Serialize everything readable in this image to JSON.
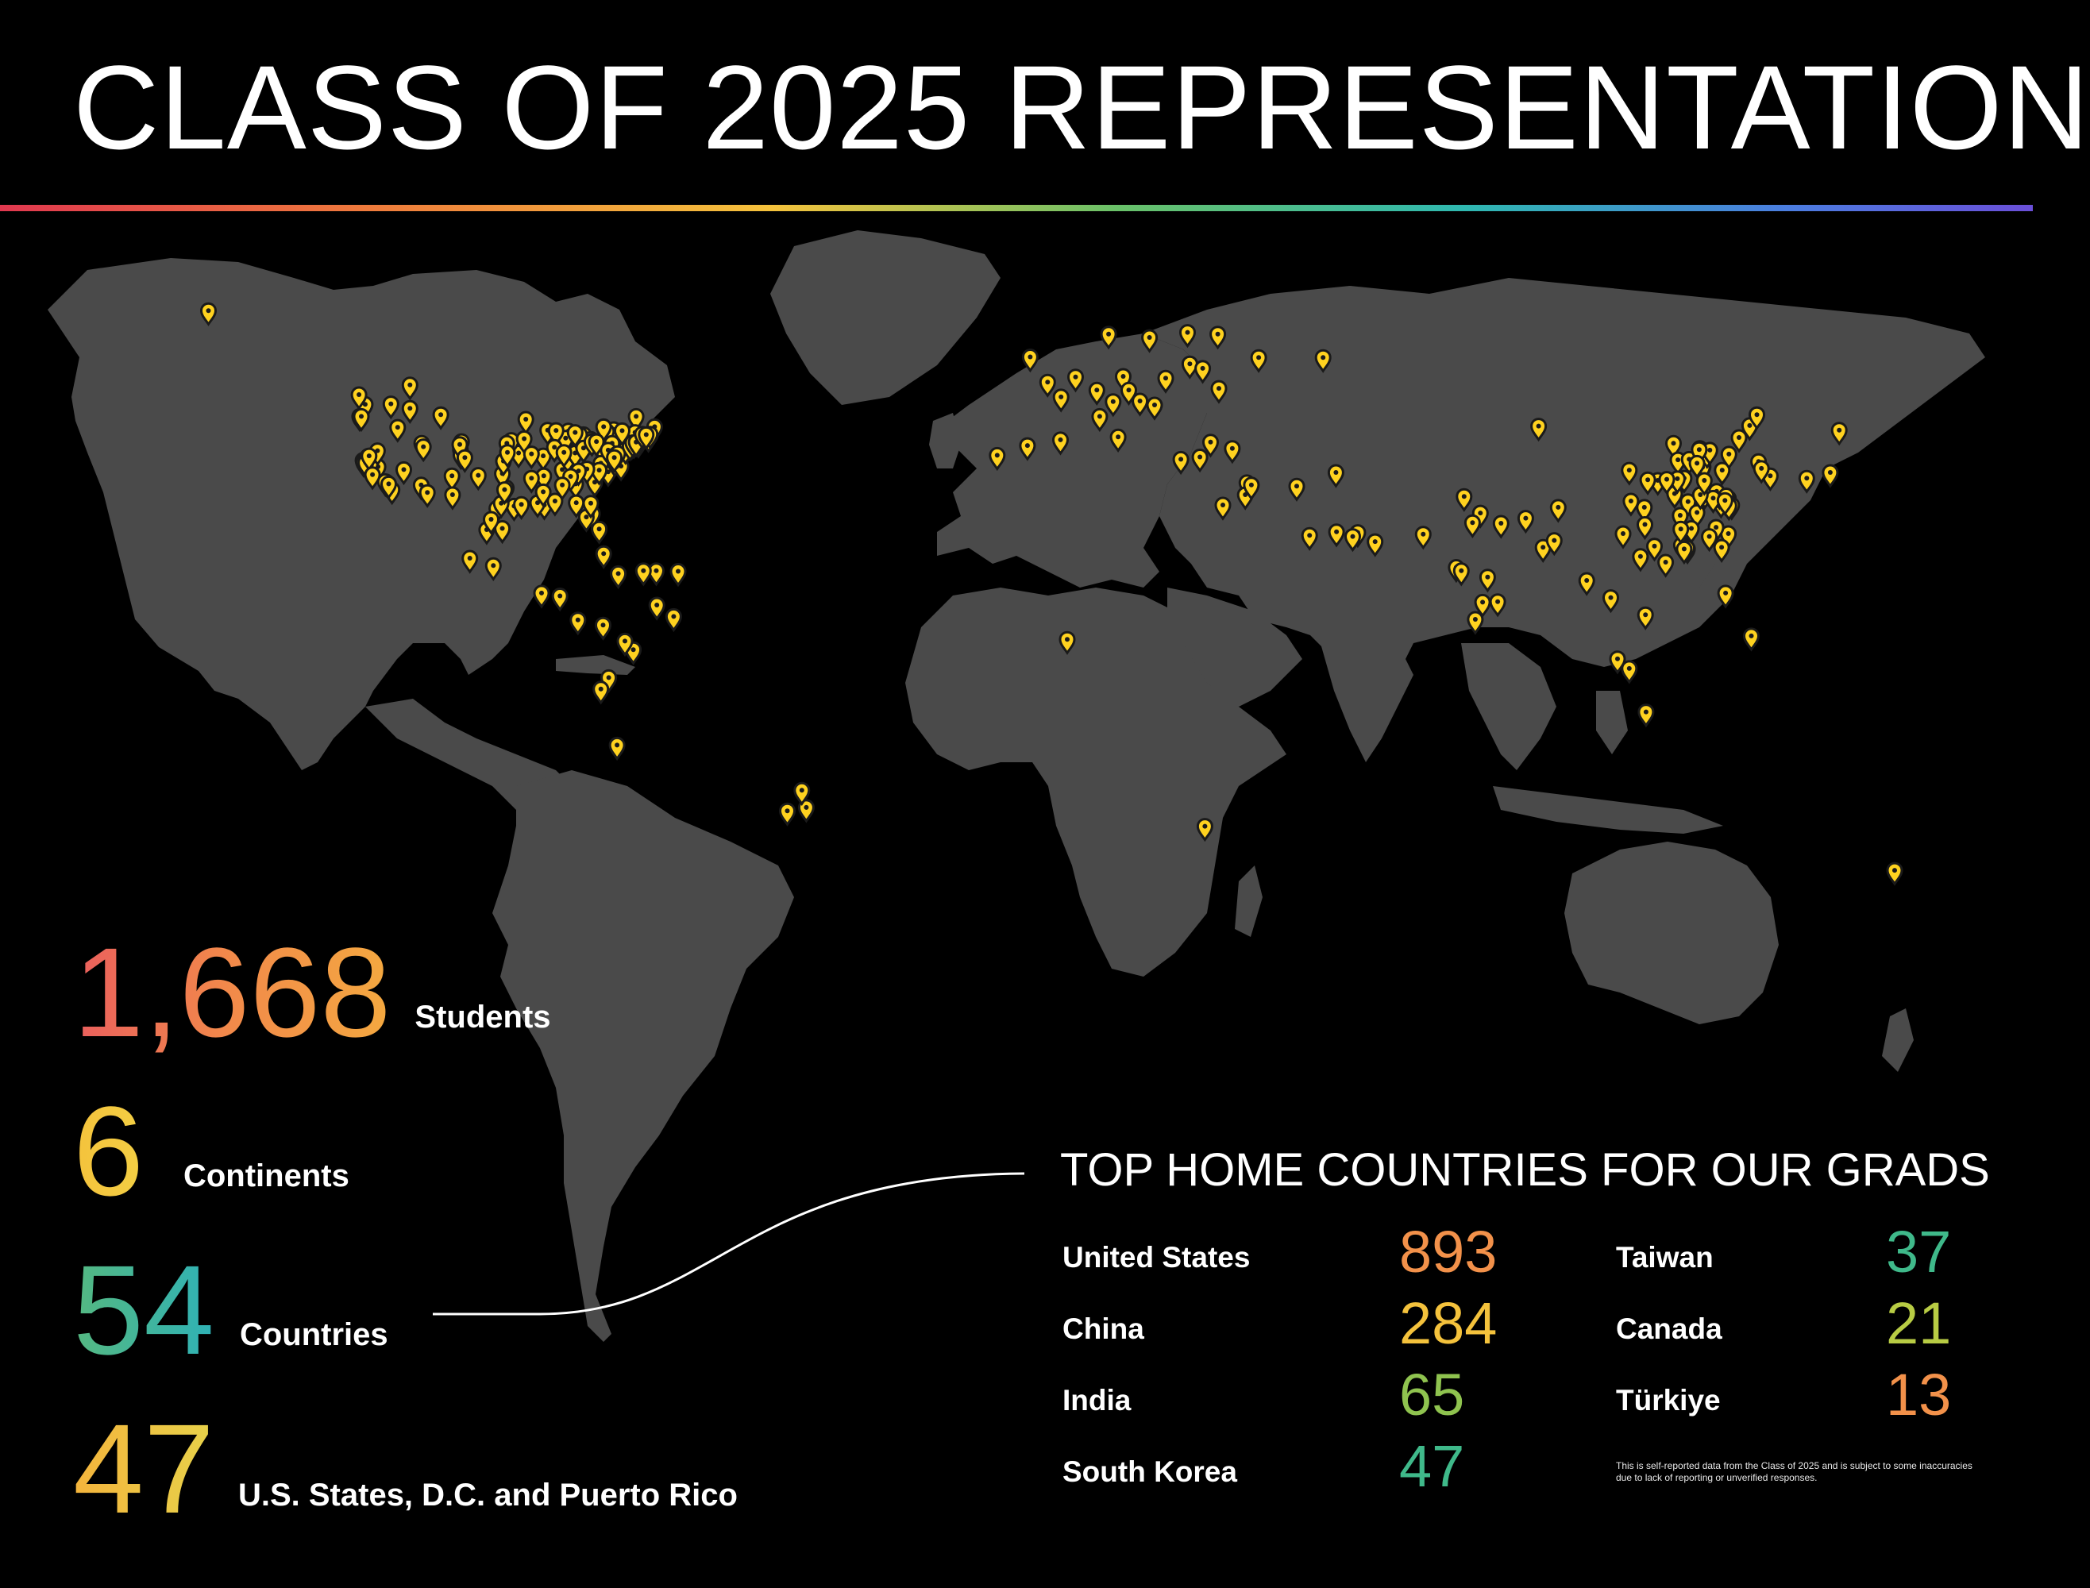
{
  "title": "CLASS OF 2025 REPRESENTATION",
  "colors": {
    "background": "#000000",
    "land": "#4a4a4a",
    "pin_fill": "#ffd21f",
    "pin_outline": "#1a1a1a",
    "accent_red": "#ea5f5d",
    "accent_orange": "#f2914a",
    "accent_yellow": "#f4c23c",
    "accent_green": "#6cc46a",
    "accent_teal": "#2fb8b0",
    "accent_blue": "#4b7de0"
  },
  "stats": [
    {
      "number": "1,668",
      "label": "Students"
    },
    {
      "number": "6",
      "label": "Continents"
    },
    {
      "number": "54",
      "label": "Countries"
    },
    {
      "number": "47",
      "label": "U.S. States, D.C. and Puerto Rico"
    }
  ],
  "top_countries": {
    "heading": "TOP HOME COUNTRIES FOR OUR GRADS",
    "items": [
      {
        "name": "United States",
        "count": "893",
        "color": "#f2914a"
      },
      {
        "name": "China",
        "count": "284",
        "color": "#f4c23c"
      },
      {
        "name": "India",
        "count": "65",
        "color": "#8fc34f"
      },
      {
        "name": "South Korea",
        "count": "47",
        "color": "#3fb98a"
      },
      {
        "name": "Taiwan",
        "count": "37",
        "color": "#3fb98a"
      },
      {
        "name": "Canada",
        "count": "21",
        "color": "#b8cc44"
      },
      {
        "name": "Türkiye",
        "count": "13",
        "color": "#f2914a"
      }
    ]
  },
  "disclaimer": "This is self-reported data from the Class of 2025 and is subject to some inaccuracies due to lack of reporting or unverified responses.",
  "map": {
    "pin_icon": "map-pin-icon",
    "pins": [
      [
        -150,
        64
      ],
      [
        -122,
        47.6
      ],
      [
        -123,
        45.5
      ],
      [
        -122.4,
        37.8
      ],
      [
        -122,
        37.3
      ],
      [
        -121.5,
        38.5
      ],
      [
        -118.2,
        34
      ],
      [
        -117.2,
        32.7
      ],
      [
        -119.7,
        36.7
      ],
      [
        -111.9,
        40.8
      ],
      [
        -112,
        33.5
      ],
      [
        -106.5,
        35.1
      ],
      [
        -105,
        39.7
      ],
      [
        -104.8,
        41.1
      ],
      [
        -97,
        32.8
      ],
      [
        -95.4,
        29.8
      ],
      [
        -98.5,
        29.4
      ],
      [
        -97.7,
        30.3
      ],
      [
        -96.8,
        33
      ],
      [
        -90,
        30
      ],
      [
        -94.6,
        39.1
      ],
      [
        -93.3,
        45
      ],
      [
        -90.2,
        38.6
      ],
      [
        -87.6,
        41.9
      ],
      [
        -88,
        43
      ],
      [
        -86.2,
        39.8
      ],
      [
        -84.4,
        33.7
      ],
      [
        -83,
        42.3
      ],
      [
        -81.7,
        41.5
      ],
      [
        -80,
        40.4
      ],
      [
        -77,
        38.9
      ],
      [
        -76.6,
        39.3
      ],
      [
        -75.2,
        40
      ],
      [
        -74,
        40.7
      ],
      [
        -73.9,
        41.3
      ],
      [
        -71,
        42.4
      ],
      [
        -72.7,
        41.8
      ],
      [
        -77.6,
        43.2
      ],
      [
        -78.9,
        42.9
      ],
      [
        -80.8,
        35.2
      ],
      [
        -78.6,
        35.8
      ],
      [
        -81,
        34
      ],
      [
        -81.4,
        28.5
      ],
      [
        -80.2,
        25.8
      ],
      [
        -82.5,
        27.9
      ],
      [
        -86.8,
        36.2
      ],
      [
        -85.8,
        38.2
      ],
      [
        -84.5,
        39.1
      ],
      [
        -90.1,
        35.1
      ],
      [
        -92.3,
        34.7
      ],
      [
        -97.5,
        35.5
      ],
      [
        -95.9,
        41.3
      ],
      [
        -108.5,
        45.8
      ],
      [
        -116.2,
        43.6
      ],
      [
        -114,
        46.9
      ],
      [
        -79.4,
        43.7
      ],
      [
        -73.6,
        45.5
      ],
      [
        -114,
        51
      ],
      [
        -123.1,
        49.3
      ],
      [
        -99.1,
        19.4
      ],
      [
        -103.3,
        20.7
      ],
      [
        -100.3,
        25.7
      ],
      [
        -90.5,
        14.6
      ],
      [
        -87.2,
        14.1
      ],
      [
        -84,
        9.9
      ],
      [
        -79.5,
        9
      ],
      [
        -66.1,
        18.4
      ],
      [
        -70,
        18.5
      ],
      [
        -76.8,
        18
      ],
      [
        -69.9,
        12.5
      ],
      [
        -74.1,
        4.7
      ],
      [
        -75.6,
        6.2
      ],
      [
        -78.5,
        -0.2
      ],
      [
        -79.9,
        -2.2
      ],
      [
        -77,
        -12
      ],
      [
        -66.9,
        10.5
      ],
      [
        -46.6,
        -23.5
      ],
      [
        -43.2,
        -22.9
      ],
      [
        -44,
        -19.9
      ],
      [
        -0.1,
        51.5
      ],
      [
        -3.2,
        55.9
      ],
      [
        2.3,
        48.9
      ],
      [
        4.9,
        52.4
      ],
      [
        8.7,
        50.1
      ],
      [
        13.4,
        52.5
      ],
      [
        11.6,
        48.1
      ],
      [
        16.4,
        48.2
      ],
      [
        14.4,
        50.1
      ],
      [
        21,
        52.2
      ],
      [
        19,
        47.5
      ],
      [
        12.5,
        41.9
      ],
      [
        9.2,
        45.5
      ],
      [
        -3.7,
        40.4
      ],
      [
        2.2,
        41.4
      ],
      [
        -9.1,
        38.7
      ],
      [
        18.1,
        59.3
      ],
      [
        24.9,
        60.2
      ],
      [
        10.8,
        59.9
      ],
      [
        25.3,
        54.7
      ],
      [
        37.6,
        55.8
      ],
      [
        30.3,
        59.9
      ],
      [
        23.7,
        38
      ],
      [
        29,
        41
      ],
      [
        32.9,
        39.9
      ],
      [
        27.1,
        38.4
      ],
      [
        35.5,
        33.9
      ],
      [
        31.2,
        30
      ],
      [
        35.2,
        31.8
      ],
      [
        36.3,
        33.5
      ],
      [
        44.4,
        33.3
      ],
      [
        46.7,
        24.7
      ],
      [
        51.5,
        25.3
      ],
      [
        55.3,
        25.2
      ],
      [
        54.4,
        24.5
      ],
      [
        51.4,
        35.7
      ],
      [
        58.4,
        23.6
      ],
      [
        67,
        24.9
      ],
      [
        74.3,
        31.5
      ],
      [
        77.2,
        28.6
      ],
      [
        75.8,
        26.9
      ],
      [
        80.9,
        26.8
      ],
      [
        72.9,
        19.1
      ],
      [
        73.8,
        18.5
      ],
      [
        78.5,
        17.4
      ],
      [
        80.3,
        13.1
      ],
      [
        77.6,
        13
      ],
      [
        76.3,
        10
      ],
      [
        88.4,
        22.6
      ],
      [
        90.4,
        23.8
      ],
      [
        85.3,
        27.7
      ],
      [
        100.5,
        13.8
      ],
      [
        96.2,
        16.8
      ],
      [
        106.7,
        10.8
      ],
      [
        105.8,
        21
      ],
      [
        103.8,
        1.4
      ],
      [
        101.7,
        3.1
      ],
      [
        106.8,
        -6.2
      ],
      [
        121,
        14.6
      ],
      [
        125.6,
        7.1
      ],
      [
        121.5,
        25
      ],
      [
        120.3,
        22.6
      ],
      [
        114.2,
        22.3
      ],
      [
        113.3,
        23.1
      ],
      [
        116.4,
        39.9
      ],
      [
        117.2,
        39.1
      ],
      [
        121.5,
        31.2
      ],
      [
        120.2,
        30.3
      ],
      [
        118.8,
        32
      ],
      [
        114.3,
        30.6
      ],
      [
        104.1,
        30.7
      ],
      [
        106.5,
        29.6
      ],
      [
        108.9,
        34.3
      ],
      [
        113.6,
        34.7
      ],
      [
        117,
        36.7
      ],
      [
        120.4,
        36.1
      ],
      [
        123.4,
        41.8
      ],
      [
        125.3,
        43.9
      ],
      [
        126.6,
        45.8
      ],
      [
        112.9,
        28.2
      ],
      [
        115.9,
        28.7
      ],
      [
        119.3,
        26.1
      ],
      [
        110.3,
        20
      ],
      [
        102.7,
        25
      ],
      [
        91.1,
        29.6
      ],
      [
        87.6,
        43.8
      ],
      [
        103.8,
        36.1
      ],
      [
        111.7,
        40.8
      ],
      [
        126.9,
        37.6
      ],
      [
        129,
        35.1
      ],
      [
        127.4,
        36.4
      ],
      [
        139.7,
        35.7
      ],
      [
        135.5,
        34.7
      ],
      [
        141.3,
        43.1
      ],
      [
        151.2,
        -33.9
      ],
      [
        28,
        -26.2
      ],
      [
        3.4,
        6.5
      ],
      [
        30.5,
        50.4
      ],
      [
        27.6,
        53.9
      ],
      [
        49.1,
        55.8
      ],
      [
        -122.3,
        37.5
      ],
      [
        -121.9,
        37.4
      ],
      [
        -118.4,
        34.1
      ],
      [
        -117.8,
        33.7
      ],
      [
        -104.9,
        38.8
      ],
      [
        -96.7,
        40.8
      ],
      [
        -93.6,
        41.6
      ],
      [
        -89.4,
        43.1
      ],
      [
        -85.7,
        42.96
      ],
      [
        -83.7,
        42.3
      ],
      [
        -82.99,
        39.96
      ],
      [
        -86.2,
        41.7
      ],
      [
        -84.3,
        30.4
      ],
      [
        -81.7,
        30.3
      ],
      [
        -77.4,
        37.5
      ],
      [
        -76.3,
        36.8
      ],
      [
        -75.5,
        39.7
      ],
      [
        -74.4,
        40.5
      ],
      [
        -73.2,
        40.8
      ],
      [
        -72.9,
        41.3
      ],
      [
        -71.4,
        41.8
      ],
      [
        -70.3,
        43.7
      ],
      [
        -73.8,
        42.7
      ],
      [
        -76.1,
        43
      ],
      [
        -77.9,
        40.8
      ],
      [
        -79.9,
        37.3
      ],
      [
        -80.2,
        36.1
      ],
      [
        -82.4,
        36.3
      ],
      [
        -83.9,
        35.96
      ],
      [
        -85.3,
        35
      ],
      [
        -86.8,
        33.5
      ],
      [
        -88.1,
        30.7
      ],
      [
        -91.2,
        30.4
      ],
      [
        -90.2,
        32.3
      ],
      [
        -94.1,
        30.1
      ],
      [
        -97.1,
        32.7
      ],
      [
        -101.8,
        35.2
      ],
      [
        -106.4,
        31.8
      ],
      [
        -110.9,
        32.2
      ],
      [
        -115.1,
        36.2
      ],
      [
        -119.8,
        39.5
      ],
      [
        -121.3,
        38.6
      ],
      [
        -120.7,
        35.3
      ],
      [
        -117.4,
        47.7
      ],
      [
        -122.7,
        45.5
      ],
      [
        -111.6,
        40.2
      ],
      [
        -105.1,
        40.6
      ],
      [
        -97.3,
        37.7
      ],
      [
        -96.6,
        39.2
      ],
      [
        -92.3,
        38.95
      ],
      [
        -87.9,
        43.04
      ],
      [
        -88.2,
        40.1
      ],
      [
        -86.5,
        39.2
      ],
      [
        -84.5,
        42.7
      ],
      [
        -81.5,
        41.1
      ],
      [
        -80.7,
        41.1
      ],
      [
        -78.6,
        39.6
      ],
      [
        -77.2,
        38.8
      ],
      [
        -76.9,
        39
      ],
      [
        -77.5,
        38.3
      ],
      [
        -74.7,
        40.3
      ],
      [
        -74.2,
        40.9
      ],
      [
        -73.6,
        41.0
      ],
      [
        -72.5,
        42.4
      ],
      [
        -71.1,
        42.4
      ],
      [
        -71.8,
        42.3
      ],
      [
        -104.2,
        38.3
      ],
      [
        116.9,
        36.6
      ],
      [
        118.1,
        24.5
      ],
      [
        112.5,
        37.9
      ],
      [
        114.5,
        38
      ],
      [
        121.6,
        38.9
      ],
      [
        117.3,
        31.9
      ],
      [
        120.6,
        31.3
      ],
      [
        120.3,
        31.6
      ],
      [
        119.9,
        31.8
      ],
      [
        122.1,
        30
      ],
      [
        121.6,
        29.9
      ],
      [
        113.1,
        23
      ],
      [
        114.1,
        22.5
      ],
      [
        113.6,
        22.3
      ],
      [
        108.3,
        22.8
      ],
      [
        106.6,
        26.6
      ],
      [
        117.7,
        39
      ],
      [
        118.2,
        39.6
      ],
      [
        116.3,
        39.7
      ],
      [
        115.9,
        37.3
      ],
      [
        119.4,
        32.4
      ],
      [
        118.8,
        31.2
      ],
      [
        121.1,
        31.6
      ],
      [
        120.9,
        30.8
      ],
      [
        116.5,
        31.8
      ],
      [
        114.9,
        25.9
      ],
      [
        113,
        25.8
      ],
      [
        111.9,
        32
      ],
      [
        112.4,
        34.6
      ],
      [
        110.5,
        34.5
      ],
      [
        107.1,
        34.4
      ],
      [
        117.2,
        34.3
      ],
      [
        -97.5,
        25.9
      ],
      [
        -99.5,
        27.5
      ],
      [
        -79.4,
        21.5
      ],
      [
        -72.3,
        18.5
      ]
    ]
  }
}
